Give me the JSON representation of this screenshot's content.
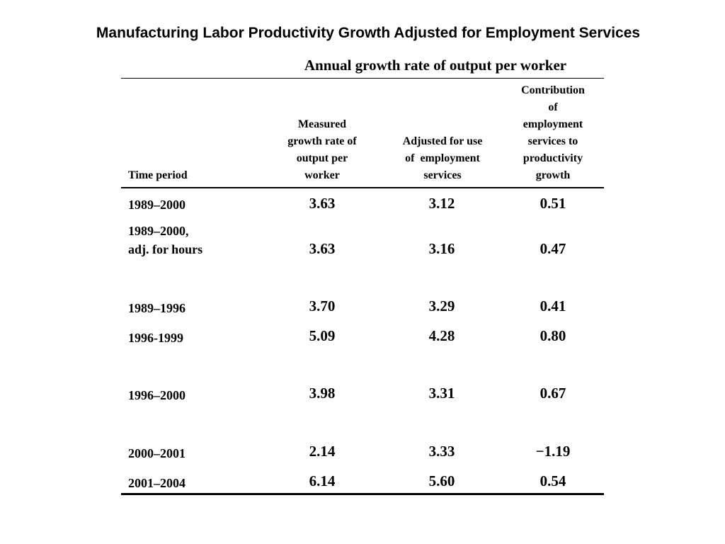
{
  "title": "Manufacturing Labor Productivity Growth Adjusted for Employment Services",
  "table": {
    "super_header": "Annual growth rate of output per worker",
    "headers": {
      "time_period": "Time period",
      "measured": [
        "Measured",
        "growth rate of",
        "output per",
        "worker"
      ],
      "adjusted": [
        "Adjusted for use",
        "of  employment",
        "services"
      ],
      "contribution": [
        "Contribution",
        "of",
        "employment",
        "services to",
        "productivity",
        "growth"
      ]
    },
    "rows": [
      {
        "label": [
          "1989–2000"
        ],
        "measured": "3.63",
        "adjusted": "3.12",
        "contribution": "0.51"
      },
      {
        "label": [
          "1989–2000,",
          "adj. for hours"
        ],
        "measured": "3.63",
        "adjusted": "3.16",
        "contribution": "0.47"
      },
      {
        "label": [
          "1989–1996"
        ],
        "measured": "3.70",
        "adjusted": "3.29",
        "contribution": "0.41"
      },
      {
        "label": [
          "1996-1999"
        ],
        "measured": "5.09",
        "adjusted": "4.28",
        "contribution": "0.80"
      },
      {
        "label": [
          "1996–2000"
        ],
        "measured": "3.98",
        "adjusted": "3.31",
        "contribution": "0.67"
      },
      {
        "label": [
          "2000–2001"
        ],
        "measured": "2.14",
        "adjusted": "3.33",
        "contribution": "−1.19"
      },
      {
        "label": [
          "2001–2004"
        ],
        "measured": "6.14",
        "adjusted": "5.60",
        "contribution": "0.54"
      }
    ]
  }
}
